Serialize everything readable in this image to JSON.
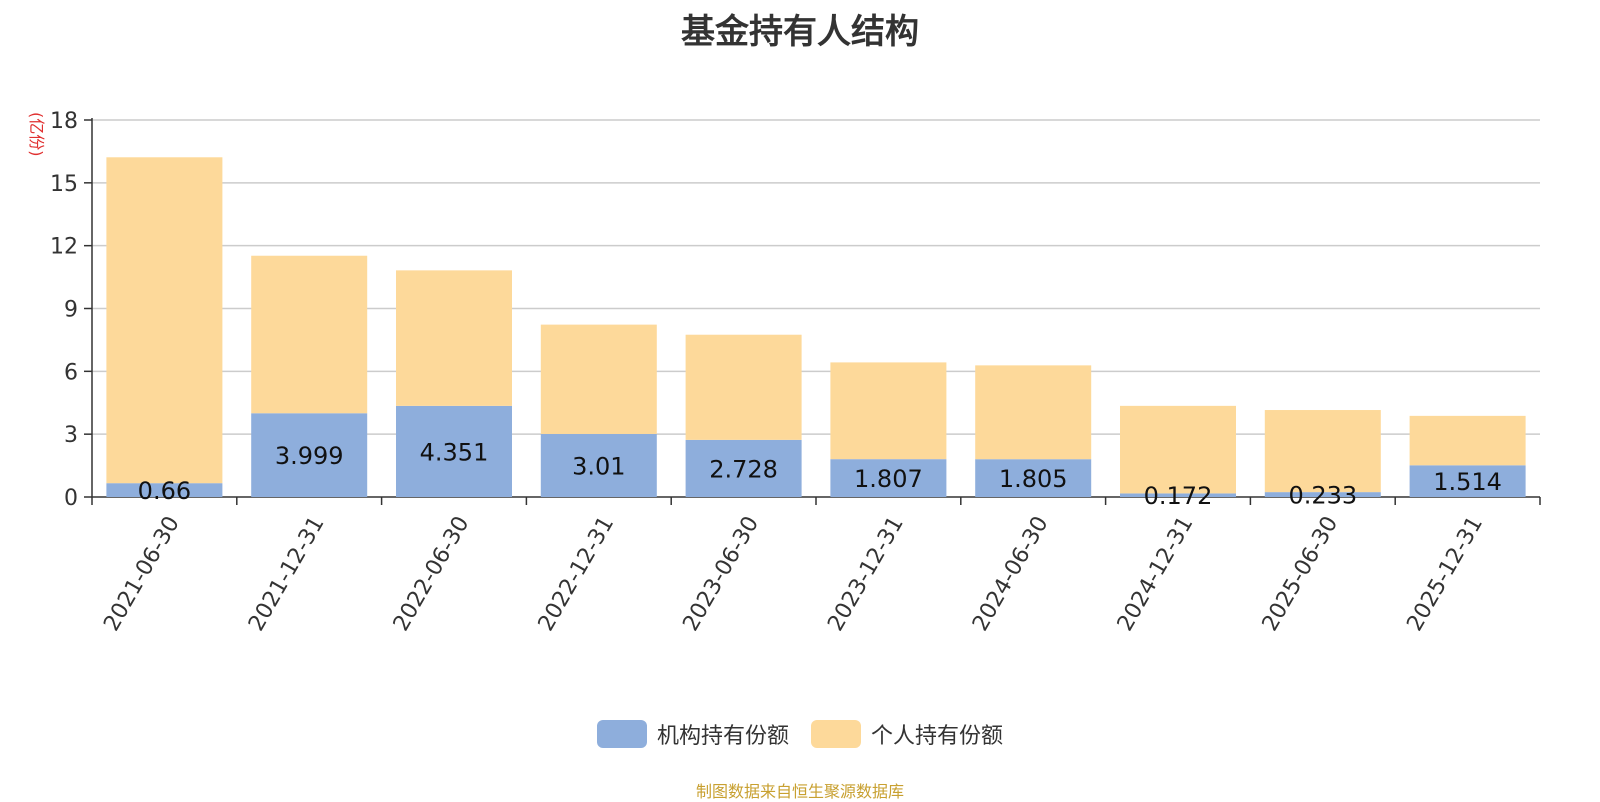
{
  "page": {
    "title": "基金持有人结构",
    "y_unit": "(亿份)",
    "source_note": "制图数据来自恒生聚源数据库"
  },
  "chart_data": {
    "type": "bar",
    "stacked": true,
    "title": "基金持有人结构",
    "xlabel": "",
    "ylabel": "(亿份)",
    "ylim": [
      0,
      18
    ],
    "yticks": [
      0,
      3,
      6,
      9,
      12,
      15,
      18
    ],
    "grid": true,
    "legend_position": "bottom",
    "categories": [
      "2021-06-30",
      "2021-12-31",
      "2022-06-30",
      "2022-12-31",
      "2023-06-30",
      "2023-12-31",
      "2024-06-30",
      "2024-12-31",
      "2025-06-30",
      "2025-12-31"
    ],
    "series": [
      {
        "name": "机构持有份额",
        "color": "#8eaedc",
        "values": [
          0.66,
          3.999,
          4.351,
          3.01,
          2.728,
          1.807,
          1.805,
          0.172,
          0.233,
          1.514
        ],
        "labels": [
          "0.66",
          "3.999",
          "4.351",
          "3.01",
          "2.728",
          "1.807",
          "1.805",
          "0.172",
          "0.233",
          "1.514"
        ]
      },
      {
        "name": "个人持有份额",
        "color": "#fdd99a",
        "values": [
          15.56,
          7.52,
          6.47,
          5.22,
          5.02,
          4.62,
          4.48,
          4.18,
          3.92,
          2.36
        ]
      }
    ]
  }
}
